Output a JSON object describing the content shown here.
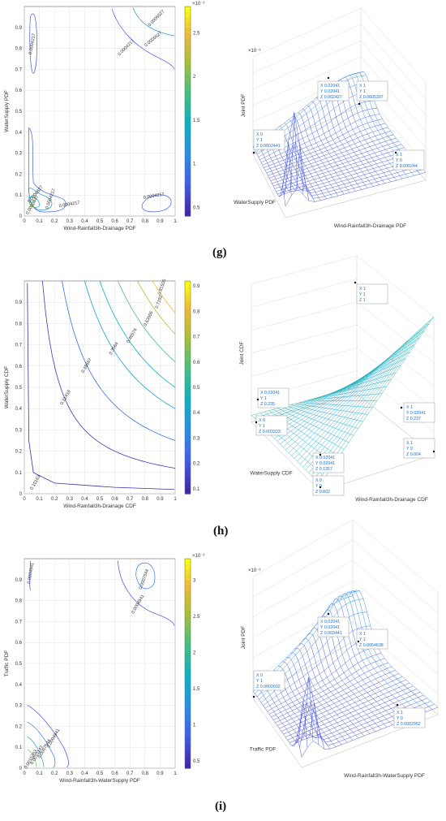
{
  "panels": [
    {
      "label": "(g)",
      "contour": {
        "xlabel": "Wind-Rainfall3h-Drainage PDF",
        "ylabel": "WaterSupply PDF",
        "colorbar_exp": "×10⁻³",
        "colorbar_ticks": [
          "0.5",
          "1",
          "1.5",
          "2",
          "2.5"
        ],
        "contour_labels": [
          "0.0006627",
          "0.0006627",
          "0.0004217",
          "0.0004217",
          "0.0004217",
          "0.0004217",
          "0.0006627",
          "0.0010847",
          "0.0004217"
        ]
      },
      "surface": {
        "zlabel": "Joint PDF",
        "xlabel": "WaterSupply PDF",
        "ylabel": "Wind-Rainfall3h-Drainage PDF",
        "z_exp": "×10⁻³",
        "tips": [
          [
            "X 0.02041",
            "Y 0.02041",
            "Z 0.002427"
          ],
          [
            "X 1",
            "Y 1",
            "Z 0.0005397"
          ],
          [
            "X 0",
            "Y 1",
            "Z 0.0002441"
          ],
          [
            "X 1",
            "Y 0",
            "Z 0.000244"
          ]
        ]
      }
    },
    {
      "label": "(h)",
      "contour": {
        "xlabel": "Wind-Rainfall3h-Drainage CDF",
        "ylabel": "WaterSupply CDF",
        "colorbar_exp": "",
        "colorbar_ticks": [
          "0.1",
          "0.2",
          "0.3",
          "0.4",
          "0.5",
          "0.6",
          "0.7",
          "0.8",
          "0.9"
        ],
        "contour_labels": [
          "0.81505",
          "0.7192",
          "0.63506",
          "0.46576",
          "0.3564",
          "0.38667",
          "0.21419",
          "0.10163"
        ]
      },
      "surface": {
        "zlabel": "Joint CDF",
        "xlabel": "WaterSupply CDF",
        "ylabel": "Wind-Rainfall3h-Drainage CDF",
        "z_exp": "",
        "tips": [
          [
            "X 1",
            "Y 1",
            "Z 1"
          ],
          [
            "X 0.02041",
            "Y 1",
            "Z 0.235"
          ],
          [
            "X 0",
            "Y 1",
            "Z 0.003333"
          ],
          [
            "X 1",
            "Y 0.02041",
            "Z 0.237"
          ],
          [
            "X 0.02041",
            "Y 0.02041",
            "Z 0.1357"
          ],
          [
            "X 0",
            "Y 0",
            "Z 0.002"
          ],
          [
            "X 1",
            "Y 0",
            "Z 0.004"
          ]
        ]
      }
    },
    {
      "label": "(i)",
      "contour": {
        "xlabel": "Wind-Rainfall3h-WaterSupply PDF",
        "ylabel": "Traffic PDF",
        "colorbar_exp": "×10⁻³",
        "colorbar_ticks": [
          "0.5",
          "1",
          "1.5",
          "2",
          "2.5",
          "3"
        ],
        "contour_labels": [
          "0.0004941",
          "0.0007544",
          "0.0004941",
          "0.0004941",
          "0.0007544",
          "0.0010147",
          "0.0015353"
        ]
      },
      "surface": {
        "zlabel": "Joint PDF",
        "xlabel": "Traffic PDF",
        "ylabel": "Wind-Rainfall3h-WaterSupply PDF",
        "z_exp": "×10⁻³",
        "tips": [
          [
            "X 0.02041",
            "Y 0.02041",
            "Z 0.003441"
          ],
          [
            "X 1",
            "Y 1",
            "Z 0.0054638"
          ],
          [
            "X 0",
            "Y 1",
            "Z 0.0002602"
          ],
          [
            "X 1",
            "Y 0",
            "Z 0.0002952"
          ]
        ]
      }
    }
  ],
  "chart_data": [
    {
      "type": "contour",
      "xlabel": "Wind-Rainfall3h-Drainage PDF",
      "ylabel": "WaterSupply PDF",
      "xlim": [
        0,
        1
      ],
      "ylim": [
        0,
        1
      ],
      "x_ticks": [
        0,
        0.1,
        0.2,
        0.3,
        0.4,
        0.5,
        0.6,
        0.7,
        0.8,
        0.9,
        1
      ],
      "y_ticks": [
        0,
        0.1,
        0.2,
        0.3,
        0.4,
        0.5,
        0.6,
        0.7,
        0.8,
        0.9
      ],
      "colorbar_range": [
        0.0004,
        0.0028
      ],
      "contour_levels": [
        0.0004217,
        0.0006627,
        0.0010847
      ]
    },
    {
      "type": "surface",
      "zlabel": "Joint PDF",
      "xlabel": "WaterSupply PDF",
      "ylabel": "Wind-Rainfall3h-Drainage PDF",
      "points": [
        {
          "x": 0.02041,
          "y": 0.02041,
          "z": 0.002427
        },
        {
          "x": 1,
          "y": 1,
          "z": 0.0005397
        },
        {
          "x": 0,
          "y": 1,
          "z": 0.0002441
        },
        {
          "x": 1,
          "y": 0,
          "z": 0.000244
        }
      ]
    },
    {
      "type": "contour",
      "xlabel": "Wind-Rainfall3h-Drainage CDF",
      "ylabel": "WaterSupply CDF",
      "xlim": [
        0,
        1
      ],
      "ylim": [
        0,
        1
      ],
      "x_ticks": [
        0,
        0.1,
        0.2,
        0.3,
        0.4,
        0.5,
        0.6,
        0.7,
        0.8,
        0.9,
        1
      ],
      "y_ticks": [
        0,
        0.1,
        0.2,
        0.3,
        0.4,
        0.5,
        0.6,
        0.7,
        0.8,
        0.9
      ],
      "colorbar_range": [
        0.08,
        0.92
      ],
      "contour_levels": [
        0.10163,
        0.21419,
        0.38667,
        0.3564,
        0.46576,
        0.63506,
        0.7192,
        0.81505
      ]
    },
    {
      "type": "surface",
      "zlabel": "Joint CDF",
      "xlabel": "WaterSupply CDF",
      "ylabel": "Wind-Rainfall3h-Drainage CDF",
      "points": [
        {
          "x": 1,
          "y": 1,
          "z": 1
        },
        {
          "x": 0.02041,
          "y": 1,
          "z": 0.235
        },
        {
          "x": 0,
          "y": 1,
          "z": 0.003333
        },
        {
          "x": 1,
          "y": 0.02041,
          "z": 0.237
        },
        {
          "x": 0.02041,
          "y": 0.02041,
          "z": 0.1357
        },
        {
          "x": 0,
          "y": 0,
          "z": 0.002
        },
        {
          "x": 1,
          "y": 0,
          "z": 0.004
        }
      ]
    },
    {
      "type": "contour",
      "xlabel": "Wind-Rainfall3h-WaterSupply PDF",
      "ylabel": "Traffic PDF",
      "xlim": [
        0,
        1
      ],
      "ylim": [
        0,
        1
      ],
      "x_ticks": [
        0,
        0.1,
        0.2,
        0.3,
        0.4,
        0.5,
        0.6,
        0.7,
        0.8,
        0.9,
        1
      ],
      "y_ticks": [
        0,
        0.1,
        0.2,
        0.3,
        0.4,
        0.5,
        0.6,
        0.7,
        0.8,
        0.9
      ],
      "colorbar_range": [
        0.0004,
        0.0033
      ],
      "contour_levels": [
        0.0004941,
        0.0007544,
        0.0010147,
        0.0015353
      ]
    },
    {
      "type": "surface",
      "zlabel": "Joint PDF",
      "xlabel": "Traffic PDF",
      "ylabel": "Wind-Rainfall3h-WaterSupply PDF",
      "points": [
        {
          "x": 0.02041,
          "y": 0.02041,
          "z": 0.003441
        },
        {
          "x": 1,
          "y": 1,
          "z": 0.0054638
        },
        {
          "x": 0,
          "y": 1,
          "z": 0.0002602
        },
        {
          "x": 1,
          "y": 0,
          "z": 0.0002952
        }
      ]
    }
  ]
}
